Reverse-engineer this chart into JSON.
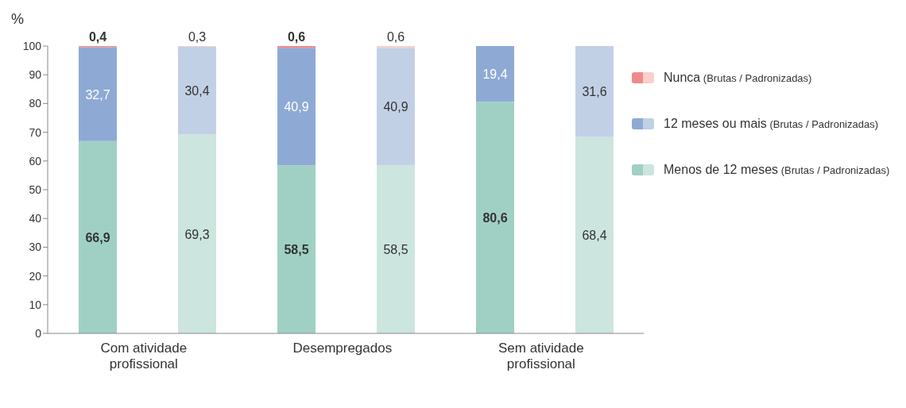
{
  "chart_data": {
    "type": "bar",
    "stacked": true,
    "ylabel": "%",
    "categories": [
      "Com atividade profissional",
      null,
      "Desempregados",
      null,
      "Sem atividade profissional",
      null
    ],
    "series": [
      {
        "name": "Menos de 12 meses (Brutas / Padronizadas)",
        "colors": [
          "#a0d0c4",
          "#cce5de",
          "#a0d0c4",
          "#cce5de",
          "#a0d0c4",
          "#cce5de"
        ],
        "values": [
          66.9,
          69.3,
          58.5,
          58.5,
          80.6,
          68.4
        ],
        "value_labels": [
          "66,9",
          "69,3",
          "58,5",
          "58,5",
          "80,6",
          "68,4"
        ]
      },
      {
        "name": "12 meses ou mais (Brutas / Padronizadas)",
        "colors": [
          "#8eaad4",
          "#c2d0e6",
          "#8eaad4",
          "#c2d0e6",
          "#8eaad4",
          "#c2d0e6"
        ],
        "values": [
          32.7,
          30.4,
          40.9,
          40.9,
          19.4,
          31.6
        ],
        "value_labels": [
          "32,7",
          "30,4",
          "40,9",
          "40,9",
          "19,4",
          "31,6"
        ]
      },
      {
        "name": "Nunca (Brutas / Padronizadas)",
        "colors": [
          "#f08a8a",
          "#f8cfcb",
          "#f08a8a",
          "#f8cfcb",
          "#f08a8a",
          "#f8cfcb"
        ],
        "values": [
          0.4,
          0.3,
          0.6,
          0.6,
          0.2,
          0.2
        ],
        "value_labels": [
          "0,4",
          "0,3",
          "0,6",
          "0,6",
          null,
          null
        ]
      }
    ],
    "ylim": [
      0,
      100
    ],
    "yticks": [
      0,
      10,
      20,
      30,
      40,
      50,
      60,
      70,
      80,
      90,
      100
    ],
    "grid": false,
    "legend": "right"
  }
}
